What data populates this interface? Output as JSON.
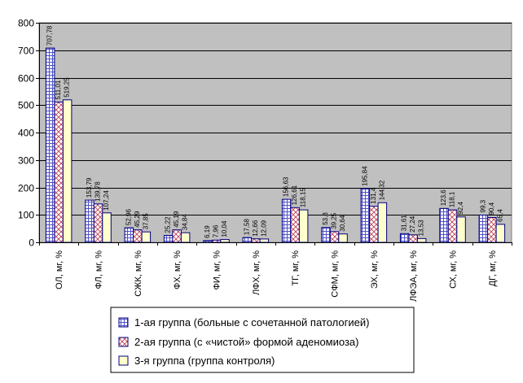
{
  "chart_data": {
    "type": "bar",
    "ylim": [
      0,
      800
    ],
    "yticks": [
      0,
      100,
      200,
      300,
      400,
      500,
      600,
      700,
      800
    ],
    "grid": true,
    "legend_position": "bottom-center",
    "categories": [
      "ОЛ, мг, %",
      "ФЛ, мг, %",
      "СЖК, мг, %",
      "ФХ, мг, %",
      "ФИ, мг, %",
      "ЛФХ, мг, %",
      "ТГ, мг, %",
      "СФМ, мг, %",
      "ЭХ, мг, %",
      "ЛФЭА, мг, %",
      "СХ, мг, %",
      "ДГ, мг, %"
    ],
    "series": [
      {
        "name": "1-ая группа (больные с сочетанной патологией)",
        "values": [
          707.78,
          153.79,
          52.96,
          25.22,
          6.19,
          17.58,
          156.63,
          53.8,
          195.84,
          31.61,
          123.6,
          99.3
        ],
        "labels": [
          "707,78",
          "153,79",
          "52,96",
          "25,22",
          "6,19",
          "17,58",
          "156,63",
          "53,8",
          "195,84",
          "31,61",
          "123,6",
          "99,3"
        ],
        "color": "#c8c8f4",
        "pattern": "grid"
      },
      {
        "name": "2-ая группа (с «чистой» формой аденомиоза)",
        "values": [
          511.01,
          139.78,
          45.29,
          45.19,
          7.96,
          12.66,
          126.61,
          39.25,
          131.4,
          27.24,
          118.1,
          90.4
        ],
        "labels": [
          "511,01",
          "139,78",
          "45,29",
          "45,19",
          "7,96",
          "12,66",
          "126,61",
          "39,25",
          "131,4",
          "27,24",
          "118,1",
          "90,4"
        ],
        "color": "#f4d4d8",
        "pattern": "diag"
      },
      {
        "name": "3-я группа (группа контроля)",
        "values": [
          519.25,
          107.24,
          37.85,
          34.84,
          10.04,
          12.09,
          118.15,
          30.64,
          144.32,
          13.53,
          92.4,
          65.4
        ],
        "labels": [
          "519,25",
          "107,24",
          "37,85",
          "34,84",
          "10,04",
          "12,09",
          "118,15",
          "30,64",
          "144,32",
          "13,53",
          "92,4",
          "65,4"
        ],
        "color": "#ffffcc",
        "pattern": "solid"
      }
    ],
    "colors": {
      "plot_background": "#c0c0c0",
      "gridline": "#000000",
      "bar_border": "#000080"
    }
  }
}
